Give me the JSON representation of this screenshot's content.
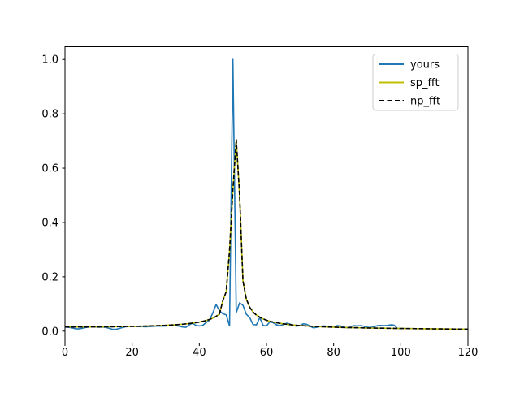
{
  "figure": {
    "background": "#ffffff",
    "axes_edge_color": "#000000",
    "legend_edge_color": "#cccccc"
  },
  "chart_data": {
    "type": "line",
    "title": "",
    "xlabel": "",
    "ylabel": "",
    "grid": false,
    "xlim": [
      0,
      120
    ],
    "ylim": [
      -0.044,
      1.047
    ],
    "x_ticks": [
      0,
      20,
      40,
      60,
      80,
      100,
      120
    ],
    "x_tick_labels": [
      "0",
      "20",
      "40",
      "60",
      "80",
      "100",
      "120"
    ],
    "y_ticks": [
      0.0,
      0.2,
      0.4,
      0.6,
      0.8,
      1.0
    ],
    "y_tick_labels": [
      "0.0",
      "0.2",
      "0.4",
      "0.6",
      "0.8",
      "1.0"
    ],
    "legend": {
      "position": "upper right",
      "entries": [
        {
          "label": "yours",
          "color": "#1f77b4",
          "dashed": false
        },
        {
          "label": "sp_fft",
          "color": "#bfbf00",
          "dashed": false
        },
        {
          "label": "np_fft",
          "color": "#000000",
          "dashed": true
        }
      ]
    },
    "series": [
      {
        "name": "yours",
        "color": "#1f77b4",
        "style": "solid",
        "x_start": 0,
        "values": [
          0.015,
          0.014,
          0.012,
          0.009,
          0.008,
          0.01,
          0.013,
          0.015,
          0.0155,
          0.015,
          0.0145,
          0.015,
          0.014,
          0.011,
          0.007,
          0.006,
          0.009,
          0.013,
          0.016,
          0.0175,
          0.018,
          0.0175,
          0.017,
          0.0165,
          0.016,
          0.0165,
          0.0175,
          0.0185,
          0.019,
          0.0185,
          0.019,
          0.02,
          0.021,
          0.0205,
          0.018,
          0.015,
          0.014,
          0.023,
          0.029,
          0.021,
          0.019,
          0.021,
          0.031,
          0.04,
          0.066,
          0.098,
          0.075,
          0.064,
          0.06,
          0.019,
          1.0,
          0.068,
          0.104,
          0.095,
          0.062,
          0.05,
          0.024,
          0.023,
          0.05,
          0.021,
          0.019,
          0.034,
          0.031,
          0.023,
          0.02,
          0.024,
          0.029,
          0.026,
          0.021,
          0.018,
          0.021,
          0.027,
          0.025,
          0.018,
          0.012,
          0.014,
          0.017,
          0.019,
          0.018,
          0.015,
          0.016,
          0.02,
          0.019,
          0.015,
          0.012,
          0.016,
          0.02,
          0.019,
          0.02,
          0.018,
          0.014,
          0.013,
          0.016,
          0.02,
          0.021,
          0.02,
          0.021,
          0.023,
          0.022,
          0.01,
          0.0085
        ]
      },
      {
        "name": "sp_fft",
        "color": "#bfbf00",
        "style": "solid",
        "x_start": 0,
        "values": [
          0.015,
          0.015,
          0.015,
          0.0151,
          0.0151,
          0.0152,
          0.0153,
          0.0153,
          0.0154,
          0.0155,
          0.0156,
          0.0157,
          0.0159,
          0.016,
          0.0161,
          0.0163,
          0.0165,
          0.0167,
          0.0169,
          0.0171,
          0.0173,
          0.0176,
          0.0179,
          0.0182,
          0.0185,
          0.0189,
          0.0193,
          0.0197,
          0.0202,
          0.0207,
          0.0213,
          0.022,
          0.0227,
          0.0235,
          0.0244,
          0.0254,
          0.0266,
          0.0279,
          0.0294,
          0.0312,
          0.0333,
          0.0358,
          0.0389,
          0.0427,
          0.0476,
          0.0541,
          0.063,
          0.112,
          0.145,
          0.295,
          0.52,
          0.705,
          0.5,
          0.185,
          0.118,
          0.088,
          0.07,
          0.059,
          0.051,
          0.045,
          0.0402,
          0.0364,
          0.0333,
          0.0307,
          0.0286,
          0.0267,
          0.0251,
          0.0237,
          0.0225,
          0.0214,
          0.0204,
          0.0196,
          0.0188,
          0.0181,
          0.0174,
          0.0168,
          0.0163,
          0.0158,
          0.0153,
          0.0149,
          0.0145,
          0.0141,
          0.0137,
          0.0134,
          0.0131,
          0.0128,
          0.0125,
          0.0123,
          0.012,
          0.0118,
          0.0116,
          0.0113,
          0.0111,
          0.0109,
          0.0107,
          0.0106,
          0.0104,
          0.0102,
          0.01,
          0.0099,
          0.0097,
          0.0095,
          0.0094,
          0.0092,
          0.0091,
          0.0089,
          0.0088,
          0.0086,
          0.0085,
          0.0084,
          0.0082,
          0.0081,
          0.008,
          0.0079,
          0.0078,
          0.0077,
          0.0076,
          0.0075,
          0.0074,
          0.0073,
          0.0072
        ]
      },
      {
        "name": "np_fft",
        "color": "#000000",
        "style": "dashed",
        "x_start": 0,
        "values": [
          0.015,
          0.015,
          0.015,
          0.0151,
          0.0151,
          0.0152,
          0.0153,
          0.0153,
          0.0154,
          0.0155,
          0.0156,
          0.0157,
          0.0159,
          0.016,
          0.0161,
          0.0163,
          0.0165,
          0.0167,
          0.0169,
          0.0171,
          0.0173,
          0.0176,
          0.0179,
          0.0182,
          0.0185,
          0.0189,
          0.0193,
          0.0197,
          0.0202,
          0.0207,
          0.0213,
          0.022,
          0.0227,
          0.0235,
          0.0244,
          0.0254,
          0.0266,
          0.0279,
          0.0294,
          0.0312,
          0.0333,
          0.0358,
          0.0389,
          0.0427,
          0.0476,
          0.0541,
          0.063,
          0.112,
          0.145,
          0.295,
          0.52,
          0.705,
          0.5,
          0.185,
          0.118,
          0.088,
          0.07,
          0.059,
          0.051,
          0.045,
          0.0402,
          0.0364,
          0.0333,
          0.0307,
          0.0286,
          0.0267,
          0.0251,
          0.0237,
          0.0225,
          0.0214,
          0.0204,
          0.0196,
          0.0188,
          0.0181,
          0.0174,
          0.0168,
          0.0163,
          0.0158,
          0.0153,
          0.0149,
          0.0145,
          0.0141,
          0.0137,
          0.0134,
          0.0131,
          0.0128,
          0.0125,
          0.0123,
          0.012,
          0.0118,
          0.0116,
          0.0113,
          0.0111,
          0.0109,
          0.0107,
          0.0106,
          0.0104,
          0.0102,
          0.01,
          0.0099,
          0.0097,
          0.0095,
          0.0094,
          0.0092,
          0.0091,
          0.0089,
          0.0088,
          0.0086,
          0.0085,
          0.0084,
          0.0082,
          0.0081,
          0.008,
          0.0079,
          0.0078,
          0.0077,
          0.0076,
          0.0075,
          0.0074,
          0.0073,
          0.0072
        ]
      }
    ]
  }
}
